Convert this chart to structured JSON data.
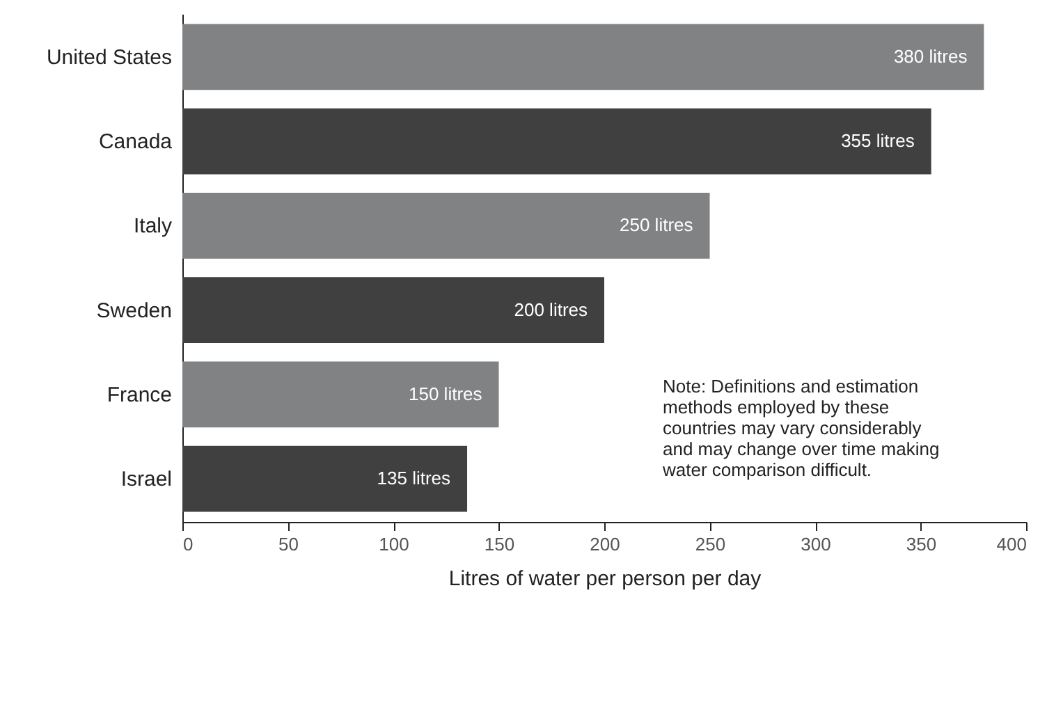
{
  "chart_data": {
    "type": "bar",
    "orientation": "horizontal",
    "xlabel": "Litres of water per person per day",
    "categories": [
      "United States",
      "Canada",
      "Italy",
      "Sweden",
      "France",
      "Israel"
    ],
    "values": [
      380,
      355,
      250,
      200,
      150,
      135
    ],
    "value_labels": [
      "380 litres",
      "355 litres",
      "250 litres",
      "200 litres",
      "150 litres",
      "135 litres"
    ],
    "colors": [
      "#808283",
      "#404040",
      "#808283",
      "#404040",
      "#808283",
      "#404040"
    ],
    "xlim": [
      0,
      400
    ],
    "xticks": [
      0,
      50,
      100,
      150,
      200,
      250,
      300,
      350,
      400
    ],
    "grid": false,
    "annotations": [
      "Note: Definitions and estimation methods employed by these countries may vary considerably and may change over time making water comparison difficult."
    ]
  }
}
